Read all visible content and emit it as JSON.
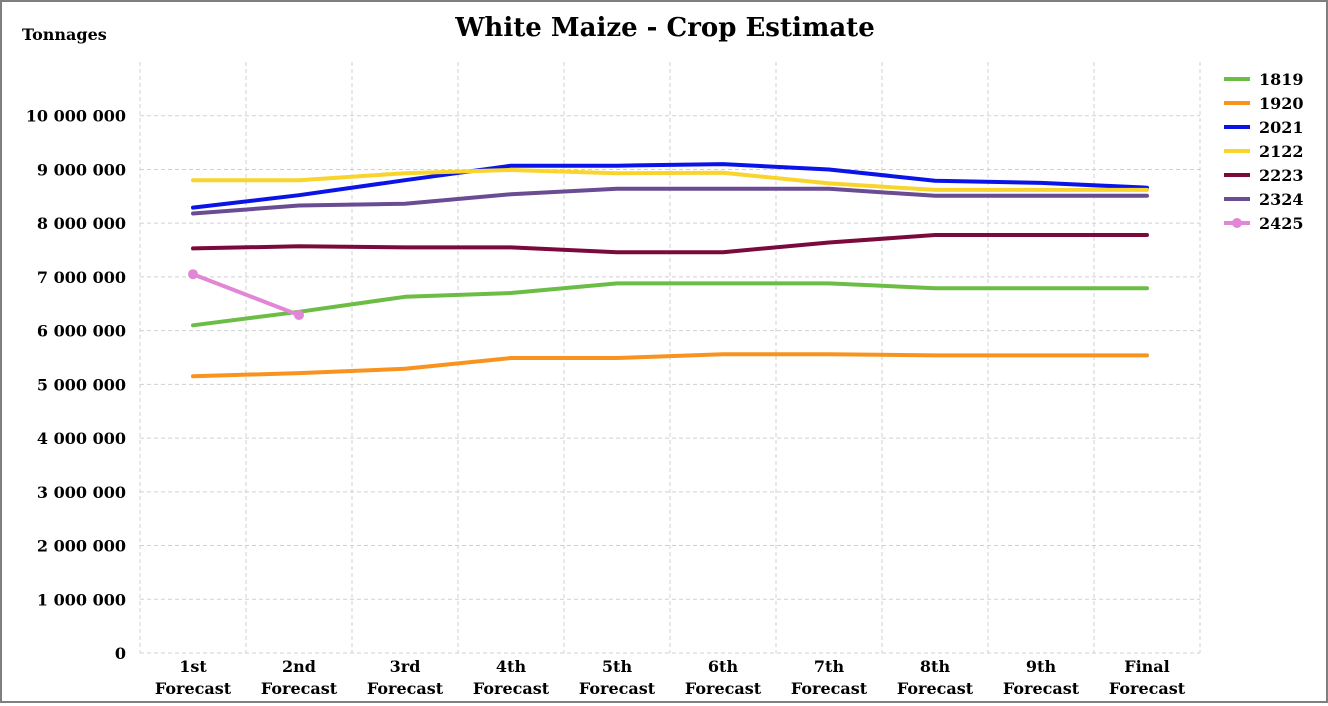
{
  "chart_data": {
    "type": "line",
    "title": "White Maize - Crop Estimate",
    "ylabel": "Tonnages",
    "xlabel": "",
    "ylim": [
      0,
      11000000
    ],
    "yticks": [
      0,
      1000000,
      2000000,
      3000000,
      4000000,
      5000000,
      6000000,
      7000000,
      8000000,
      9000000,
      10000000
    ],
    "ytick_labels": [
      "0",
      "1 000 000",
      "2 000 000",
      "3 000 000",
      "4 000 000",
      "5 000 000",
      "6 000 000",
      "7 000 000",
      "8 000 000",
      "9 000 000",
      "10 000 000"
    ],
    "categories": [
      [
        "1st",
        "Forecast"
      ],
      [
        "2nd",
        "Forecast"
      ],
      [
        "3rd",
        "Forecast"
      ],
      [
        "4th",
        "Forecast"
      ],
      [
        "5th",
        "Forecast"
      ],
      [
        "6th",
        "Forecast"
      ],
      [
        "7th",
        "Forecast"
      ],
      [
        "8th",
        "Forecast"
      ],
      [
        "9th",
        "Forecast"
      ],
      [
        "Final",
        "Forecast"
      ]
    ],
    "grid": true,
    "legend_position": "right",
    "series": [
      {
        "name": "1819",
        "color": "#6cbd45",
        "marker": false,
        "values": [
          6100000,
          6350000,
          6630000,
          6700000,
          6880000,
          6880000,
          6880000,
          6790000,
          6790000,
          6790000
        ]
      },
      {
        "name": "1920",
        "color": "#f7931e",
        "marker": false,
        "values": [
          5150000,
          5210000,
          5290000,
          5490000,
          5490000,
          5560000,
          5560000,
          5540000,
          5540000,
          5540000
        ]
      },
      {
        "name": "2021",
        "color": "#0a14e6",
        "marker": false,
        "values": [
          8290000,
          8520000,
          8800000,
          9070000,
          9070000,
          9100000,
          9000000,
          8790000,
          8750000,
          8660000
        ]
      },
      {
        "name": "2122",
        "color": "#f9d42c",
        "marker": false,
        "values": [
          8800000,
          8800000,
          8930000,
          8990000,
          8930000,
          8940000,
          8740000,
          8620000,
          8620000,
          8620000
        ]
      },
      {
        "name": "2223",
        "color": "#7a0a3c",
        "marker": false,
        "values": [
          7530000,
          7570000,
          7550000,
          7550000,
          7460000,
          7460000,
          7640000,
          7780000,
          7780000,
          7780000
        ]
      },
      {
        "name": "2324",
        "color": "#6a4c93",
        "marker": false,
        "values": [
          8180000,
          8330000,
          8360000,
          8540000,
          8640000,
          8640000,
          8640000,
          8510000,
          8510000,
          8510000
        ]
      },
      {
        "name": "2425",
        "color": "#e286d6",
        "marker": true,
        "values": [
          7050000,
          6290000,
          null,
          null,
          null,
          null,
          null,
          null,
          null,
          null
        ]
      }
    ]
  }
}
